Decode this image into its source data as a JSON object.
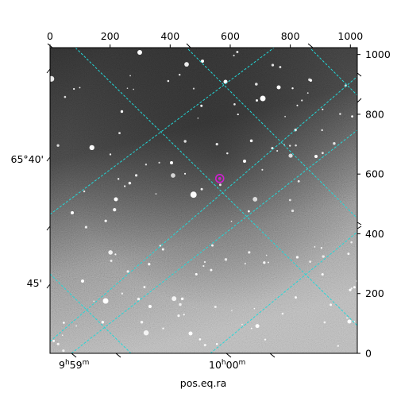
{
  "figure": {
    "xlabel": "pos.eq.ra",
    "pixel_axis": {
      "top_ticks": [
        "0",
        "200",
        "400",
        "600",
        "800",
        "1000"
      ],
      "right_ticks": [
        "0",
        "200",
        "400",
        "600",
        "800",
        "1000"
      ]
    },
    "world_axis": {
      "bottom_ticks": [
        {
          "base": "9",
          "h": "h",
          "mm": "59",
          "m": "m"
        },
        {
          "base": "10",
          "h": "h",
          "mm": "00",
          "m": "m"
        }
      ],
      "left_ticks": [
        "65°40'",
        "45'"
      ]
    },
    "colors": {
      "grid": "#22d8d8",
      "marker": "#d020d0"
    }
  },
  "chart_data": {
    "type": "scatter",
    "title": "",
    "xlabel": "pos.eq.ra",
    "ylabel": "",
    "xlim": [
      0,
      1023
    ],
    "ylim": [
      0,
      1023
    ],
    "pixel_x_ticks": [
      0,
      200,
      400,
      600,
      800,
      1000
    ],
    "pixel_y_ticks": [
      0,
      200,
      400,
      600,
      800,
      1000
    ],
    "grid": true,
    "marker_position": {
      "x": 565,
      "y": 585
    }
  }
}
